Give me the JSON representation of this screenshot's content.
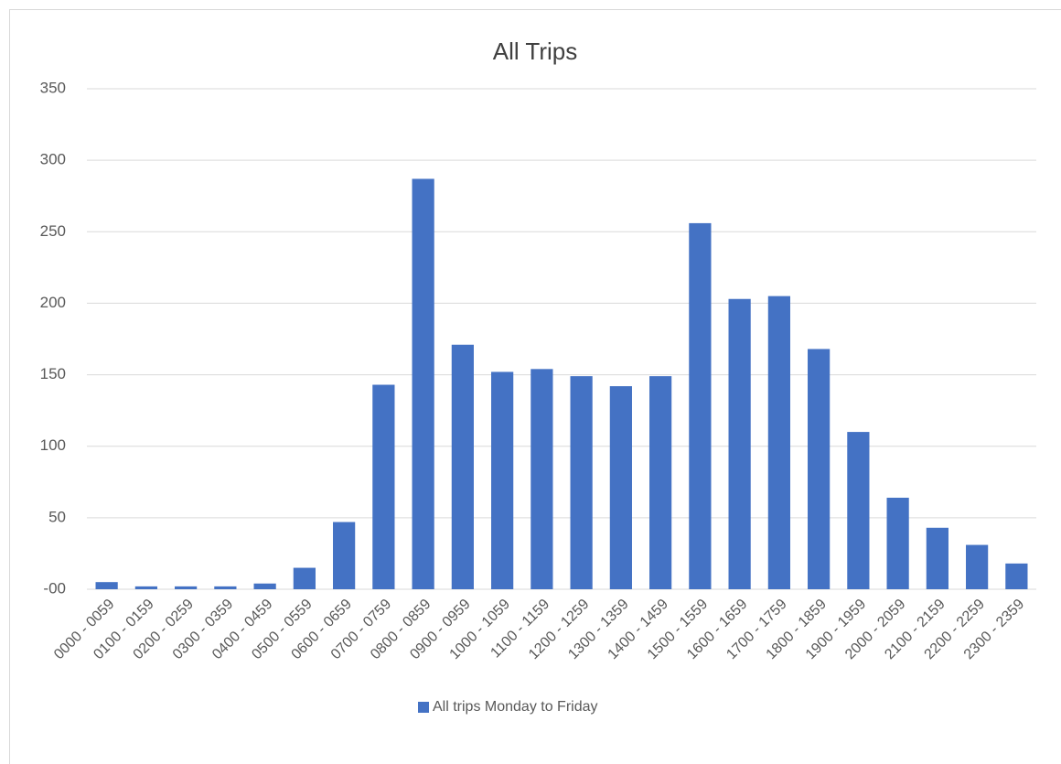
{
  "chart_data": {
    "type": "bar",
    "title": "All Trips",
    "categories": [
      "0000 - 0059",
      "0100 - 0159",
      "0200 - 0259",
      "0300 - 0359",
      "0400 - 0459",
      "0500 - 0559",
      "0600 - 0659",
      "0700 - 0759",
      "0800 - 0859",
      "0900 - 0959",
      "1000 - 1059",
      "1100 - 1159",
      "1200 - 1259",
      "1300 - 1359",
      "1400 - 1459",
      "1500 - 1559",
      "1600 - 1659",
      "1700 - 1759",
      "1800 - 1859",
      "1900 - 1959",
      "2000 - 2059",
      "2100 - 2159",
      "2200 - 2259",
      "2300 - 2359"
    ],
    "series": [
      {
        "name": "All trips Monday to Friday",
        "color": "#4472c4",
        "values": [
          5,
          2,
          2,
          2,
          4,
          15,
          47,
          143,
          287,
          171,
          152,
          154,
          149,
          142,
          149,
          256,
          203,
          205,
          168,
          110,
          64,
          43,
          31,
          18
        ]
      }
    ],
    "ylim": [
      0,
      350
    ],
    "yticks": [
      {
        "value": 0,
        "label": "-00"
      },
      50,
      100,
      150,
      200,
      250,
      300,
      350
    ],
    "grid": true,
    "legend": "bottom"
  }
}
